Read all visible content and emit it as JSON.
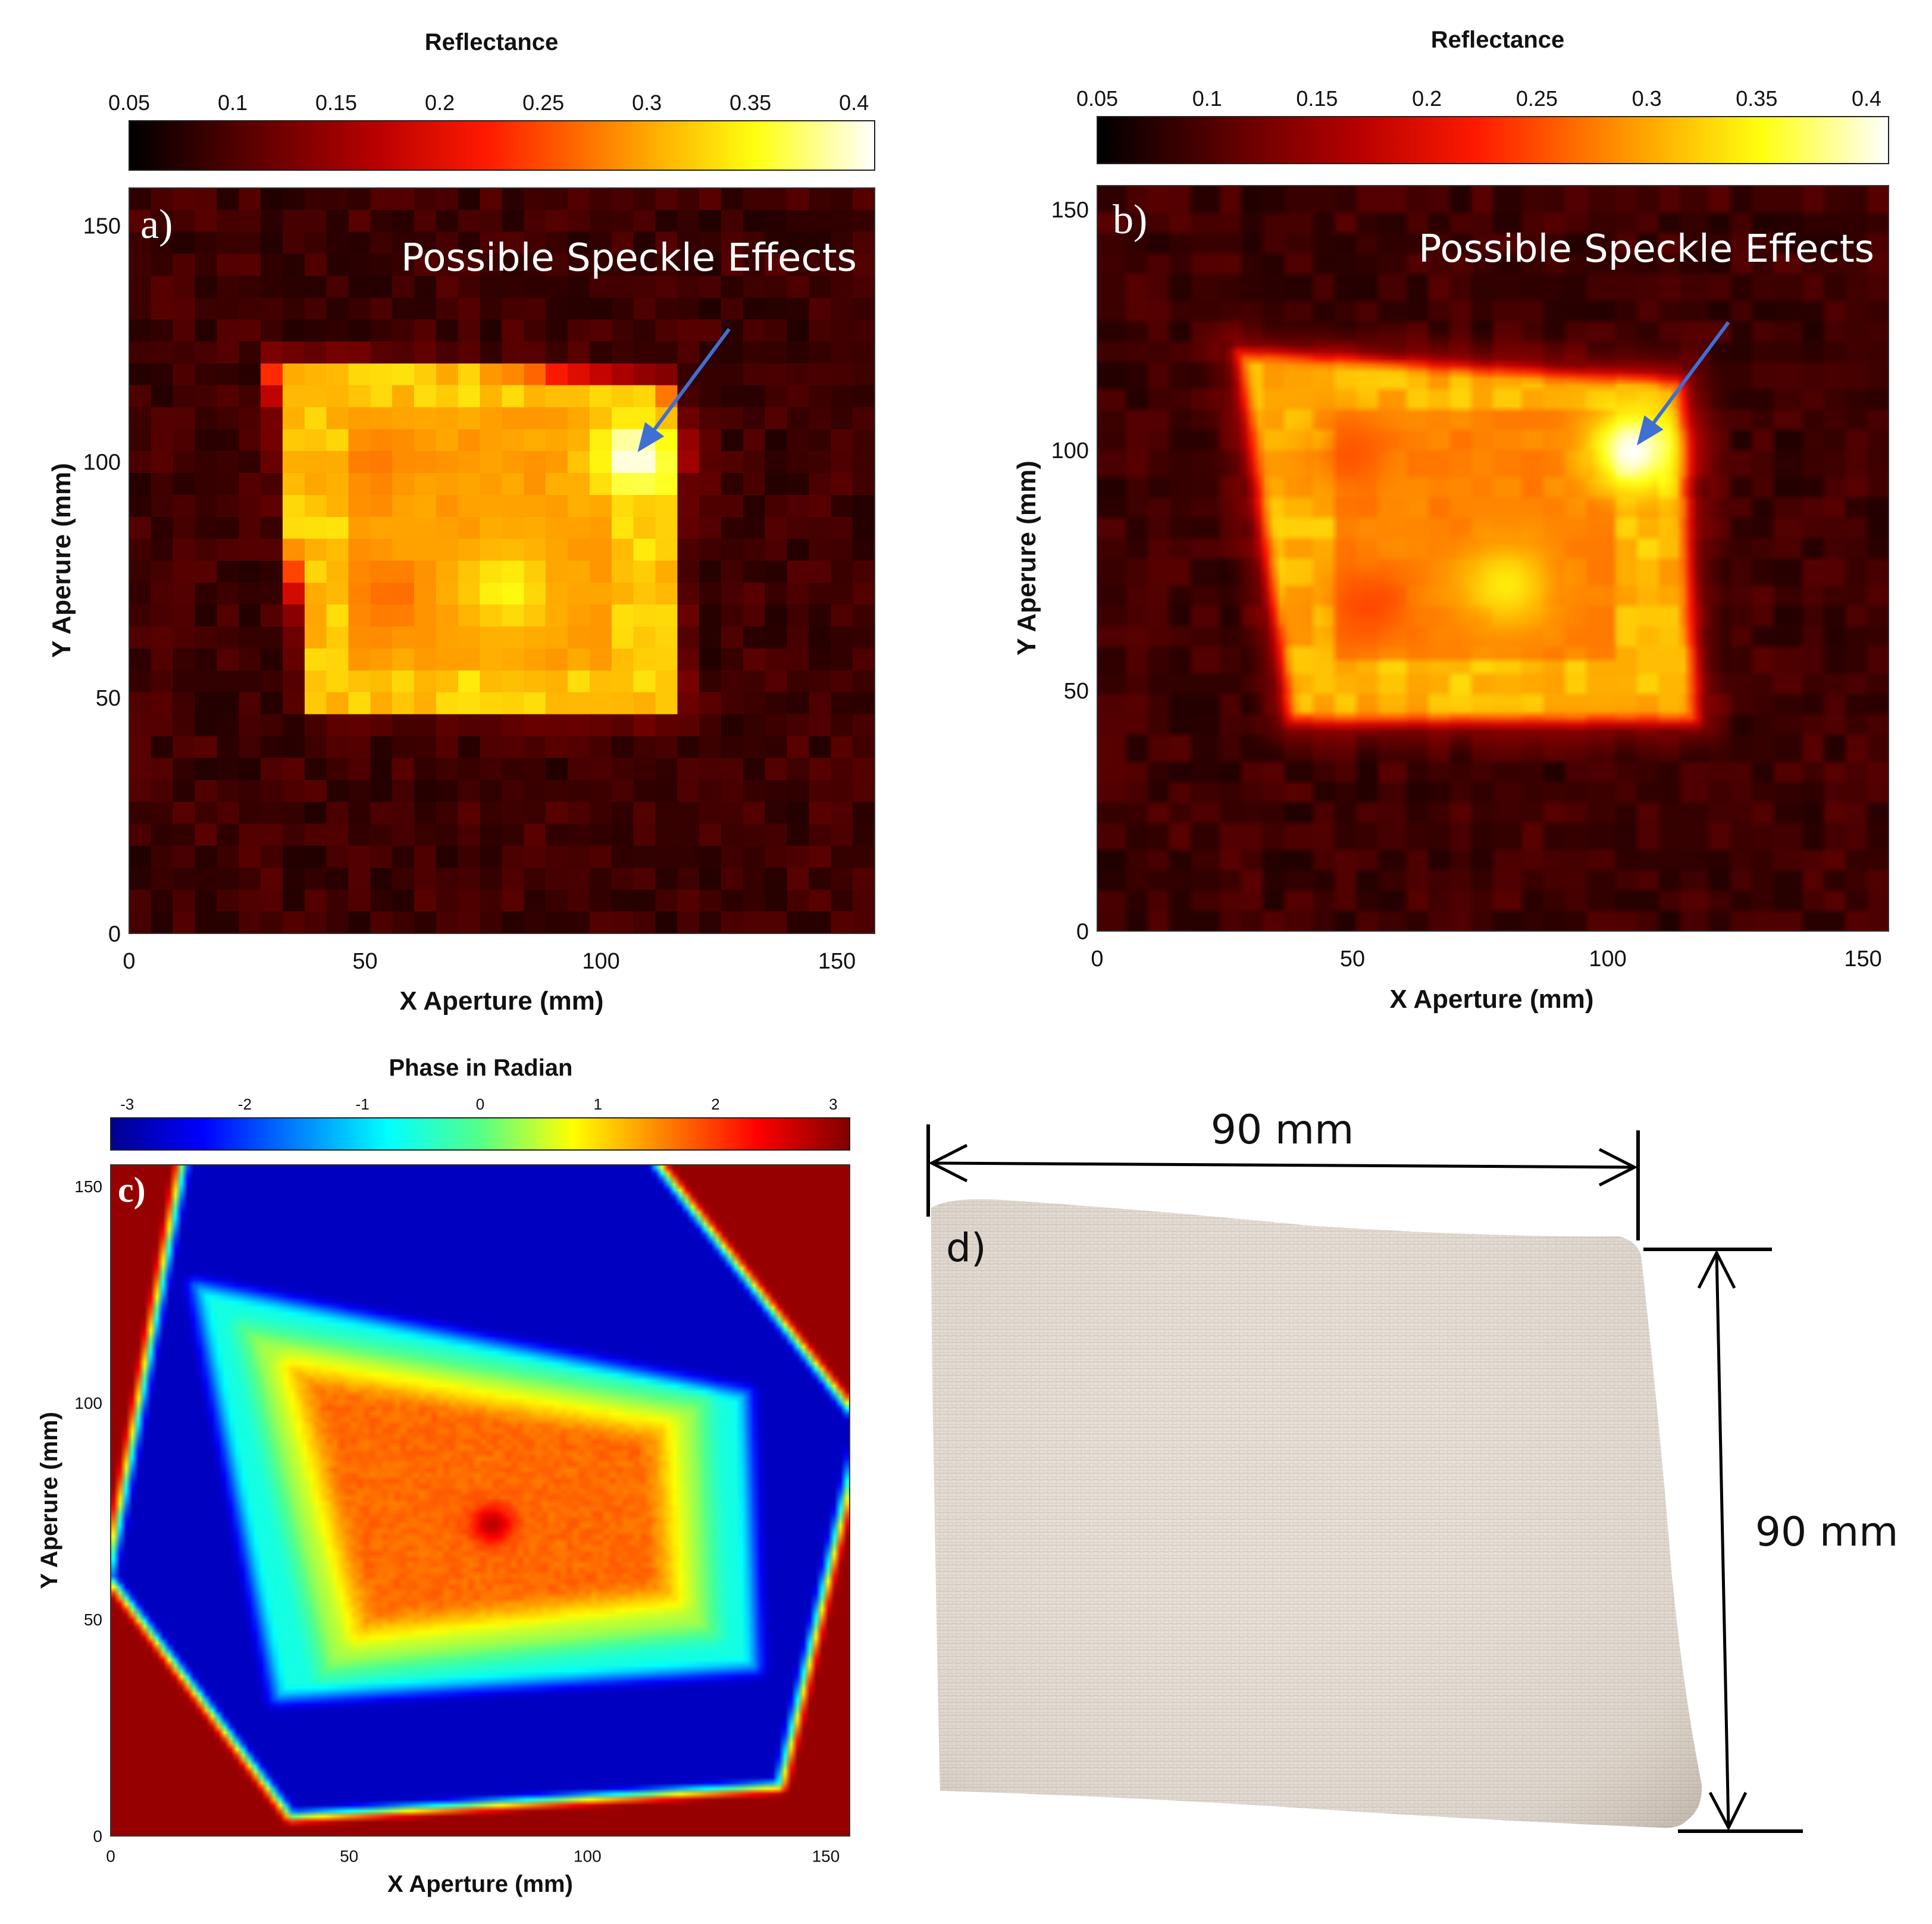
{
  "chart_data": [
    {
      "type": "heatmap",
      "panel_label": "a)",
      "colorbar_title": "Reflectance",
      "colorbar_ticks": [
        "0.05",
        "0.1",
        "0.15",
        "0.2",
        "0.25",
        "0.3",
        "0.35",
        "0.4"
      ],
      "colorbar_range": [
        0.05,
        0.41
      ],
      "colormap": "hot",
      "xlabel": "X Aperture (mm)",
      "ylabel": "Y Aperure (mm)",
      "x_ticks": [
        "0",
        "50",
        "100",
        "150"
      ],
      "y_ticks": [
        "0",
        "50",
        "100",
        "150"
      ],
      "xlim": [
        0,
        158
      ],
      "ylim": [
        0,
        158
      ],
      "rendering": "pixelated",
      "annotation": {
        "text": "Possible Speckle Effects",
        "points_to": [
          107,
          101
        ]
      },
      "field": {
        "background": 0.09,
        "square_corners": [
          [
            30,
            122
          ],
          [
            114,
            117
          ],
          [
            117,
            46
          ],
          [
            38,
            48
          ]
        ],
        "square_level": 0.32,
        "inner_rect": [
          45,
          58,
          100,
          110
        ],
        "inner_level": 0.28,
        "halo_level": 0.17,
        "hotspots": [
          {
            "x": 107,
            "y": 101,
            "value": 0.41
          },
          {
            "x": 80,
            "y": 73,
            "value": 0.35
          }
        ],
        "coolspots": [
          {
            "x": 55,
            "y": 72,
            "value": 0.26
          },
          {
            "x": 53,
            "y": 100,
            "value": 0.27
          }
        ]
      }
    },
    {
      "type": "heatmap",
      "panel_label": "b)",
      "colorbar_title": "Reflectance",
      "colorbar_ticks": [
        "0.05",
        "0.1",
        "0.15",
        "0.2",
        "0.25",
        "0.3",
        "0.35",
        "0.4"
      ],
      "colorbar_range": [
        0.05,
        0.41
      ],
      "colormap": "hot",
      "xlabel": "X Aperture (mm)",
      "ylabel": "Y Aperure (mm)",
      "x_ticks": [
        "0",
        "50",
        "100",
        "150"
      ],
      "y_ticks": [
        "0",
        "50",
        "100",
        "150"
      ],
      "xlim": [
        0,
        155
      ],
      "ylim": [
        0,
        155
      ],
      "rendering": "smooth",
      "annotation": {
        "text": "Possible Speckle Effects",
        "points_to": [
          105,
          100
        ]
      },
      "field": {
        "background": 0.09,
        "square_corners": [
          [
            28,
            120
          ],
          [
            114,
            114
          ],
          [
            117,
            44
          ],
          [
            38,
            44
          ]
        ],
        "square_level": 0.31,
        "inner_rect": [
          47,
          57,
          102,
          109
        ],
        "inner_level": 0.26,
        "halo_level": 0.17,
        "hotspots": [
          {
            "x": 105,
            "y": 100,
            "value": 0.41
          },
          {
            "x": 80,
            "y": 72,
            "value": 0.34
          }
        ],
        "coolspots": [
          {
            "x": 53,
            "y": 68,
            "value": 0.24
          },
          {
            "x": 50,
            "y": 100,
            "value": 0.25
          }
        ]
      }
    },
    {
      "type": "heatmap",
      "panel_label": "c)",
      "colorbar_title": "Phase in Radian",
      "colorbar_ticks": [
        "-3",
        "-2",
        "-1",
        "0",
        "1",
        "2",
        "3"
      ],
      "colorbar_range": [
        -3.14,
        3.14
      ],
      "colormap": "jet",
      "xlabel": "X Aperture (mm)",
      "ylabel": "Y Aperure (mm)",
      "x_ticks": [
        "0",
        "50",
        "100",
        "150"
      ],
      "y_ticks": [
        "0",
        "50",
        "100",
        "150"
      ],
      "xlim": [
        0,
        155
      ],
      "ylim": [
        0,
        155
      ],
      "rendering": "smooth",
      "field": {
        "background": 3.0,
        "outer_blue_corners": [
          [
            16,
            158
          ],
          [
            112,
            158
          ],
          [
            157,
            95
          ],
          [
            140,
            12
          ],
          [
            38,
            5
          ],
          [
            0,
            60
          ]
        ],
        "outer_blue_level": -2.8,
        "cyan_ring_corners": [
          [
            18,
            127
          ],
          [
            133,
            102
          ],
          [
            135,
            39
          ],
          [
            35,
            32
          ]
        ],
        "cyan_level": -0.6,
        "green_ring_corners": [
          [
            28,
            117
          ],
          [
            124,
            100
          ],
          [
            126,
            47
          ],
          [
            45,
            38
          ]
        ],
        "green_level": 0.4,
        "inner_corners": [
          [
            38,
            108
          ],
          [
            116,
            94
          ],
          [
            118,
            55
          ],
          [
            52,
            47
          ]
        ],
        "inner_level": 1.7,
        "center_spot": {
          "x": 80,
          "y": 72,
          "value": 2.8
        }
      }
    }
  ],
  "photo": {
    "panel_label": "d)",
    "width_dimension": "90 mm",
    "height_dimension": "90 mm"
  }
}
